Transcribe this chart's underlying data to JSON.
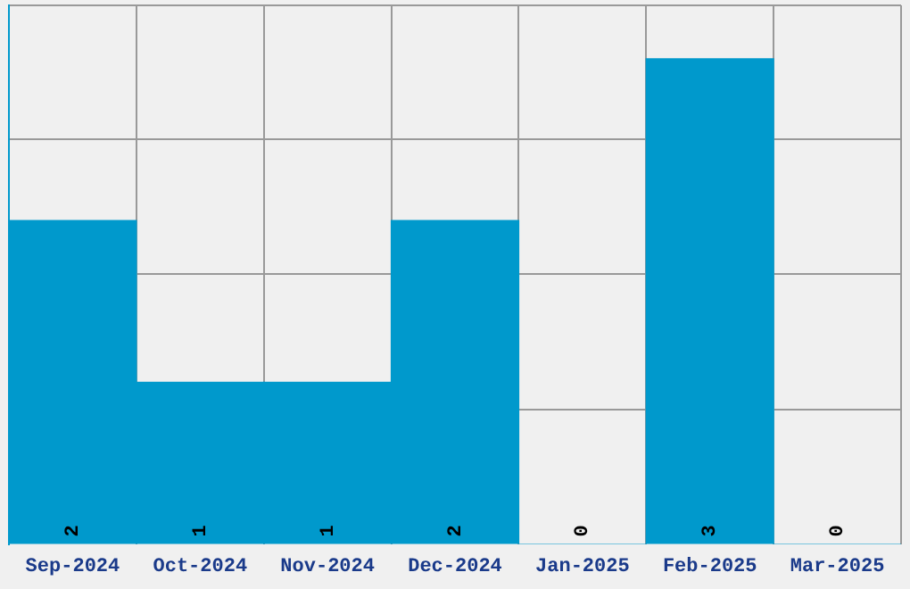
{
  "chart_data": {
    "type": "bar",
    "categories": [
      "Sep-2024",
      "Oct-2024",
      "Nov-2024",
      "Dec-2024",
      "Jan-2025",
      "Feb-2025",
      "Mar-2025"
    ],
    "values": [
      2,
      1,
      1,
      2,
      0,
      3,
      0
    ],
    "color": "#0099cc",
    "ylim": [
      0,
      3.33
    ],
    "yticks": [
      {
        "value": 0.83,
        "label": null
      },
      {
        "value": 1.67,
        "label": null
      },
      {
        "value": 2.5,
        "label": null
      },
      {
        "value": 3.33,
        "label": null
      }
    ],
    "tick_labels": "x",
    "grid": true,
    "data_labels": true,
    "legend": false
  }
}
